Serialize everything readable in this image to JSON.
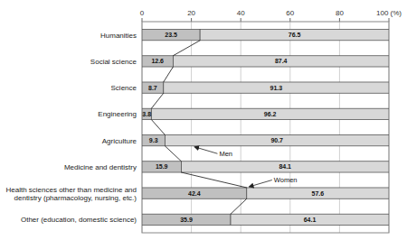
{
  "chart_data": {
    "type": "bar",
    "orientation": "horizontal",
    "stacked": true,
    "data_labels": true,
    "grid": true,
    "categories": [
      "Humanities",
      "Social science",
      "Science",
      "Engineering",
      "Agriculture",
      "Medicine and dentistry",
      "Health sciences other than medicine and\ndentistry (pharmacology, nursing, etc.)",
      "Other (education, domestic science)"
    ],
    "series": [
      {
        "name": "Women",
        "color": "#c0c0c0",
        "values": [
          23.5,
          12.6,
          8.7,
          3.8,
          9.3,
          15.9,
          42.4,
          35.9
        ]
      },
      {
        "name": "Men",
        "color": "#d8d8d8",
        "values": [
          76.5,
          87.4,
          91.3,
          96.2,
          90.7,
          84.1,
          57.6,
          64.1
        ]
      }
    ],
    "xlim": [
      0,
      100
    ],
    "xticks": [
      0,
      20,
      40,
      60,
      80,
      {
        "value": 100,
        "label": "100 (%)"
      }
    ]
  }
}
